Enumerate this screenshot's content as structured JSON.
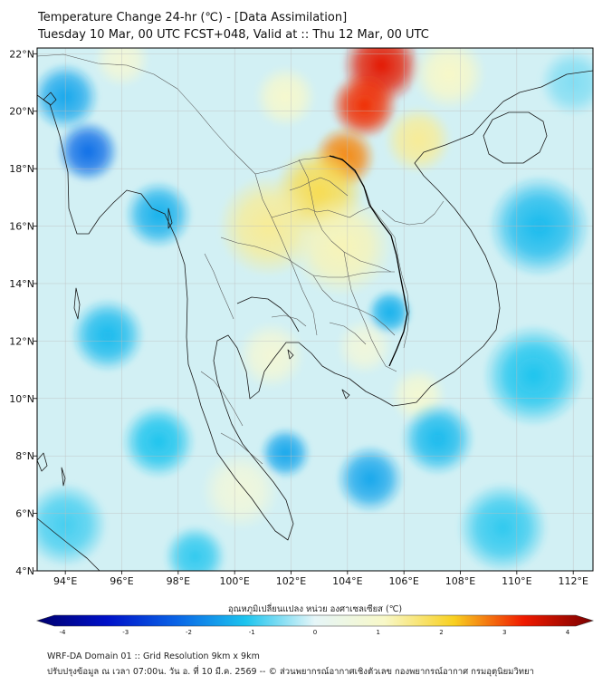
{
  "header": {
    "title": "Temperature Change 24-hr (℃) - [Data Assimilation]",
    "subtitle": "Tuesday 10 Mar, 00 UTC FCST+048, Valid at :: Thu 12 Mar, 00 UTC"
  },
  "map": {
    "lat_ticks": [
      {
        "value": 22,
        "label": "22°N"
      },
      {
        "value": 20,
        "label": "20°N"
      },
      {
        "value": 18,
        "label": "18°N"
      },
      {
        "value": 16,
        "label": "16°N"
      },
      {
        "value": 14,
        "label": "14°N"
      },
      {
        "value": 12,
        "label": "12°N"
      },
      {
        "value": 10,
        "label": "10°N"
      },
      {
        "value": 8,
        "label": "8°N"
      },
      {
        "value": 6,
        "label": "6°N"
      },
      {
        "value": 4,
        "label": "4°N"
      }
    ],
    "lon_ticks": [
      {
        "value": 94,
        "label": "94°E"
      },
      {
        "value": 96,
        "label": "96°E"
      },
      {
        "value": 98,
        "label": "98°E"
      },
      {
        "value": 100,
        "label": "100°E"
      },
      {
        "value": 102,
        "label": "102°E"
      },
      {
        "value": 104,
        "label": "104°E"
      },
      {
        "value": 106,
        "label": "106°E"
      },
      {
        "value": 108,
        "label": "108°E"
      },
      {
        "value": 110,
        "label": "110°E"
      },
      {
        "value": 112,
        "label": "112°E"
      }
    ],
    "lon_range": [
      93,
      112.7
    ],
    "lat_range": [
      4,
      22.2
    ],
    "grid": true,
    "field_blobs": [
      {
        "lon": 105.2,
        "lat": 21.6,
        "value": 3.1,
        "r": 1.4
      },
      {
        "lon": 104.6,
        "lat": 20.2,
        "value": 2.9,
        "r": 1.2
      },
      {
        "lon": 103.9,
        "lat": 18.4,
        "value": 2.4,
        "r": 1.1
      },
      {
        "lon": 103.0,
        "lat": 17.2,
        "value": 1.7,
        "r": 1.6
      },
      {
        "lon": 101.2,
        "lat": 16.0,
        "value": 1.3,
        "r": 1.8
      },
      {
        "lon": 103.8,
        "lat": 15.3,
        "value": 1.1,
        "r": 1.8
      },
      {
        "lon": 106.5,
        "lat": 19.0,
        "value": 1.3,
        "r": 1.2
      },
      {
        "lon": 107.6,
        "lat": 21.3,
        "value": 1.0,
        "r": 1.3
      },
      {
        "lon": 96.0,
        "lat": 21.8,
        "value": 0.7,
        "r": 1.0
      },
      {
        "lon": 101.8,
        "lat": 20.5,
        "value": 0.9,
        "r": 1.1
      },
      {
        "lon": 106.5,
        "lat": 10.1,
        "value": 0.8,
        "r": 1.0
      },
      {
        "lon": 101.3,
        "lat": 11.5,
        "value": 0.7,
        "r": 1.2
      },
      {
        "lon": 100.2,
        "lat": 6.8,
        "value": 0.6,
        "r": 1.4
      },
      {
        "lon": 104.6,
        "lat": 11.8,
        "value": 0.6,
        "r": 1.0
      },
      {
        "lon": 94.8,
        "lat": 18.6,
        "value": -1.9,
        "r": 1.1
      },
      {
        "lon": 94.0,
        "lat": 20.5,
        "value": -1.3,
        "r": 1.2
      },
      {
        "lon": 97.3,
        "lat": 16.4,
        "value": -1.2,
        "r": 1.2
      },
      {
        "lon": 95.5,
        "lat": 12.2,
        "value": -1.1,
        "r": 1.3
      },
      {
        "lon": 97.3,
        "lat": 8.5,
        "value": -1.0,
        "r": 1.3
      },
      {
        "lon": 101.8,
        "lat": 8.1,
        "value": -1.3,
        "r": 0.9
      },
      {
        "lon": 105.5,
        "lat": 13.0,
        "value": -1.2,
        "r": 0.8
      },
      {
        "lon": 104.8,
        "lat": 7.2,
        "value": -1.3,
        "r": 1.2
      },
      {
        "lon": 107.2,
        "lat": 8.6,
        "value": -1.1,
        "r": 1.3
      },
      {
        "lon": 110.8,
        "lat": 16.0,
        "value": -1.1,
        "r": 1.8
      },
      {
        "lon": 110.6,
        "lat": 10.8,
        "value": -1.0,
        "r": 1.8
      },
      {
        "lon": 109.5,
        "lat": 5.5,
        "value": -0.9,
        "r": 1.6
      },
      {
        "lon": 94.0,
        "lat": 5.6,
        "value": -0.8,
        "r": 1.5
      },
      {
        "lon": 98.6,
        "lat": 4.5,
        "value": -0.9,
        "r": 1.1
      },
      {
        "lon": 112.0,
        "lat": 21.0,
        "value": -0.5,
        "r": 1.2
      }
    ]
  },
  "colorbar": {
    "label": "อุณหภูมิเปลี่ยนแปลง หน่วย องศาเซลเซียส (℃)",
    "min": -4,
    "max": 4,
    "ticks": [
      "-4",
      "-3",
      "-2",
      "-1",
      "0",
      "1",
      "2",
      "3",
      "4"
    ],
    "colors": [
      "#00006e",
      "#0010c8",
      "#0a64e6",
      "#1cc4ee",
      "#e6f6f8",
      "#f8f8c8",
      "#f8d020",
      "#f01a00",
      "#7a0000"
    ]
  },
  "footer": {
    "line1": "WRF-DA Domain 01 :: Grid Resolution 9km x 9km",
    "line2": "ปรับปรุงข้อมูล ณ เวลา 07:00น. วัน อ. ที่ 10 มี.ค. 2569 -- © ส่วนพยากรณ์อากาศเชิงตัวเลข กองพยากรณ์อากาศ กรมอุตุนิยมวิทยา"
  }
}
